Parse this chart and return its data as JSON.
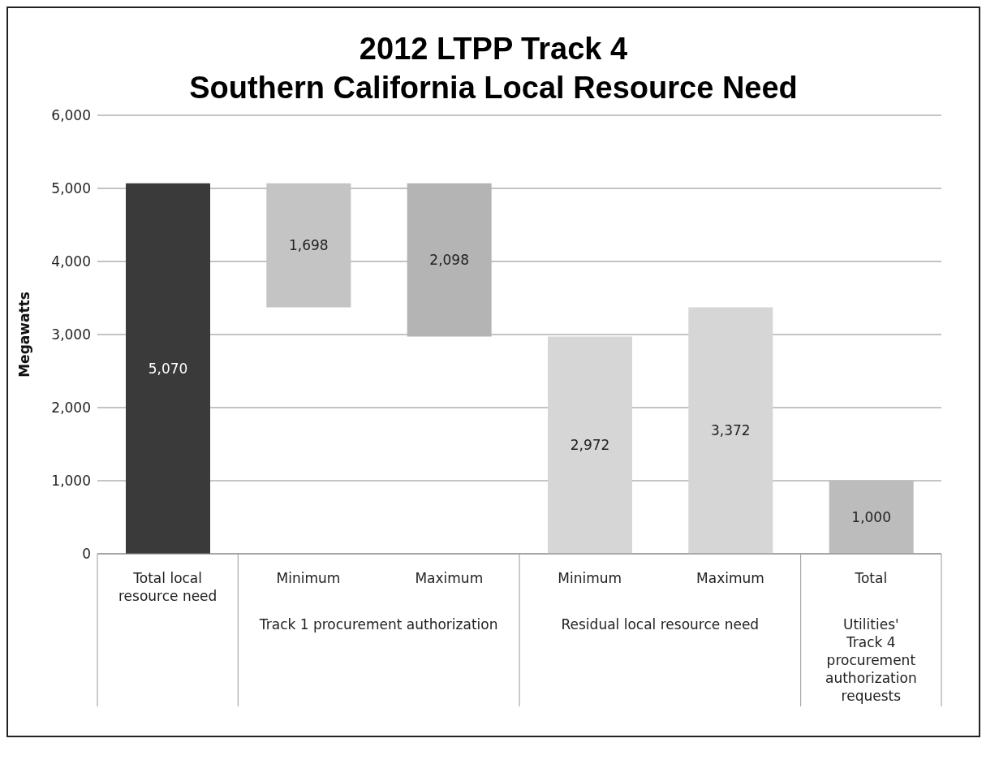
{
  "chart_data": {
    "type": "bar",
    "title": "2012 LTPP Track 4\nSouthern California Local Resource Need",
    "ylabel": "Megawatts",
    "categories": [
      "Total local resource need",
      "Minimum",
      "Maximum",
      "Minimum",
      "Maximum",
      "Total"
    ],
    "annotations": [
      "Track 1 procurement authorization",
      "Residual local resource need",
      "Utilities' Track 4 procurement authorization requests"
    ],
    "values": [
      5070,
      1698,
      2098,
      2972,
      3372,
      1000
    ],
    "base": [
      0,
      3372,
      2972,
      0,
      0,
      0
    ],
    "colors": [
      "#3a3a3a",
      "#c4c4c4",
      "#b4b4b4",
      "#d6d6d6",
      "#d6d6d6",
      "#bcbcbc"
    ],
    "value_labels": [
      "5,070",
      "1,698",
      "2,098",
      "2,972",
      "3,372",
      "1,000"
    ],
    "ylim": [
      0,
      6000
    ],
    "yticks": [
      {
        "value": 0,
        "label": "0"
      },
      {
        "value": 1000,
        "label": "1,000"
      },
      {
        "value": 2000,
        "label": "2,000"
      },
      {
        "value": 3000,
        "label": "3,000"
      },
      {
        "value": 4000,
        "label": "4,000"
      },
      {
        "value": 5000,
        "label": "5,000"
      },
      {
        "value": 6000,
        "label": "6,000"
      }
    ],
    "grid": "y",
    "legend": false
  }
}
